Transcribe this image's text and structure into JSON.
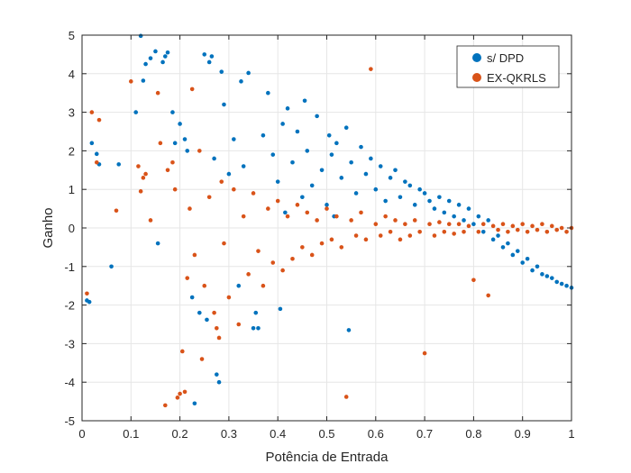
{
  "chart_data": {
    "type": "scatter",
    "title": "",
    "xlabel": "Potência de Entrada",
    "ylabel": "Ganho",
    "xlim": [
      0,
      1
    ],
    "ylim": [
      -5,
      5
    ],
    "xticks": [
      0,
      0.1,
      0.2,
      0.3,
      0.4,
      0.5,
      0.6,
      0.7,
      0.8,
      0.9,
      1
    ],
    "xtick_labels": [
      "0",
      "0.1",
      "0.2",
      "0.3",
      "0.4",
      "0.5",
      "0.6",
      "0.7",
      "0.8",
      "0.9",
      "1"
    ],
    "yticks": [
      -5,
      -4,
      -3,
      -2,
      -1,
      0,
      1,
      2,
      3,
      4,
      5
    ],
    "ytick_labels": [
      "-5",
      "-4",
      "-3",
      "-2",
      "-1",
      "0",
      "1",
      "2",
      "3",
      "4",
      "5"
    ],
    "grid": true,
    "legend_position": "top-right",
    "series": [
      {
        "name": "s/ DPD",
        "color": "#0072BD",
        "points": [
          [
            0.01,
            -1.88
          ],
          [
            0.015,
            -1.92
          ],
          [
            0.02,
            2.2
          ],
          [
            0.03,
            1.92
          ],
          [
            0.035,
            1.65
          ],
          [
            0.06,
            -1.0
          ],
          [
            0.075,
            1.65
          ],
          [
            0.11,
            3.0
          ],
          [
            0.12,
            4.98
          ],
          [
            0.125,
            3.82
          ],
          [
            0.13,
            4.25
          ],
          [
            0.14,
            4.4
          ],
          [
            0.15,
            4.58
          ],
          [
            0.155,
            -0.4
          ],
          [
            0.165,
            4.3
          ],
          [
            0.17,
            4.45
          ],
          [
            0.175,
            4.55
          ],
          [
            0.185,
            3.0
          ],
          [
            0.19,
            2.2
          ],
          [
            0.2,
            2.7
          ],
          [
            0.21,
            2.3
          ],
          [
            0.215,
            2.0
          ],
          [
            0.225,
            -1.8
          ],
          [
            0.23,
            -4.55
          ],
          [
            0.24,
            -2.2
          ],
          [
            0.25,
            4.5
          ],
          [
            0.255,
            -2.38
          ],
          [
            0.26,
            4.3
          ],
          [
            0.265,
            4.45
          ],
          [
            0.27,
            1.8
          ],
          [
            0.275,
            -3.8
          ],
          [
            0.28,
            -4.0
          ],
          [
            0.285,
            4.05
          ],
          [
            0.29,
            3.2
          ],
          [
            0.3,
            1.4
          ],
          [
            0.31,
            2.3
          ],
          [
            0.32,
            -1.5
          ],
          [
            0.325,
            3.8
          ],
          [
            0.33,
            1.6
          ],
          [
            0.34,
            4.02
          ],
          [
            0.35,
            -2.6
          ],
          [
            0.355,
            -2.2
          ],
          [
            0.36,
            -2.6
          ],
          [
            0.37,
            2.4
          ],
          [
            0.38,
            3.5
          ],
          [
            0.39,
            1.9
          ],
          [
            0.4,
            1.2
          ],
          [
            0.405,
            -2.1
          ],
          [
            0.41,
            2.7
          ],
          [
            0.415,
            0.4
          ],
          [
            0.42,
            3.1
          ],
          [
            0.43,
            1.7
          ],
          [
            0.44,
            2.5
          ],
          [
            0.45,
            0.8
          ],
          [
            0.455,
            3.3
          ],
          [
            0.46,
            2.0
          ],
          [
            0.47,
            1.1
          ],
          [
            0.48,
            2.9
          ],
          [
            0.49,
            1.5
          ],
          [
            0.5,
            0.6
          ],
          [
            0.505,
            2.4
          ],
          [
            0.51,
            1.9
          ],
          [
            0.515,
            0.3
          ],
          [
            0.52,
            2.2
          ],
          [
            0.53,
            1.3
          ],
          [
            0.54,
            2.6
          ],
          [
            0.545,
            -2.65
          ],
          [
            0.55,
            1.7
          ],
          [
            0.56,
            0.9
          ],
          [
            0.57,
            2.1
          ],
          [
            0.58,
            1.4
          ],
          [
            0.59,
            1.8
          ],
          [
            0.6,
            1.0
          ],
          [
            0.61,
            1.6
          ],
          [
            0.62,
            0.7
          ],
          [
            0.63,
            1.3
          ],
          [
            0.64,
            1.5
          ],
          [
            0.65,
            0.8
          ],
          [
            0.66,
            1.2
          ],
          [
            0.67,
            1.1
          ],
          [
            0.68,
            0.6
          ],
          [
            0.69,
            1.0
          ],
          [
            0.7,
            0.9
          ],
          [
            0.71,
            0.7
          ],
          [
            0.72,
            0.5
          ],
          [
            0.73,
            0.8
          ],
          [
            0.74,
            0.4
          ],
          [
            0.75,
            0.7
          ],
          [
            0.76,
            0.3
          ],
          [
            0.77,
            0.6
          ],
          [
            0.78,
            0.2
          ],
          [
            0.79,
            0.5
          ],
          [
            0.8,
            0.1
          ],
          [
            0.81,
            0.3
          ],
          [
            0.82,
            -0.1
          ],
          [
            0.83,
            0.2
          ],
          [
            0.84,
            -0.3
          ],
          [
            0.85,
            -0.2
          ],
          [
            0.86,
            -0.5
          ],
          [
            0.87,
            -0.4
          ],
          [
            0.88,
            -0.7
          ],
          [
            0.89,
            -0.6
          ],
          [
            0.9,
            -0.9
          ],
          [
            0.91,
            -0.8
          ],
          [
            0.92,
            -1.1
          ],
          [
            0.93,
            -1.0
          ],
          [
            0.94,
            -1.2
          ],
          [
            0.95,
            -1.25
          ],
          [
            0.96,
            -1.3
          ],
          [
            0.97,
            -1.4
          ],
          [
            0.98,
            -1.45
          ],
          [
            0.99,
            -1.5
          ],
          [
            1.0,
            -1.55
          ]
        ]
      },
      {
        "name": "EX-QKRLS",
        "color": "#D95319",
        "points": [
          [
            0.01,
            -1.7
          ],
          [
            0.02,
            3.0
          ],
          [
            0.03,
            1.7
          ],
          [
            0.035,
            2.8
          ],
          [
            0.07,
            0.45
          ],
          [
            0.1,
            3.8
          ],
          [
            0.115,
            1.6
          ],
          [
            0.12,
            0.95
          ],
          [
            0.125,
            1.3
          ],
          [
            0.13,
            1.4
          ],
          [
            0.14,
            0.2
          ],
          [
            0.155,
            3.5
          ],
          [
            0.16,
            2.2
          ],
          [
            0.17,
            -4.6
          ],
          [
            0.175,
            1.5
          ],
          [
            0.185,
            1.7
          ],
          [
            0.19,
            1.0
          ],
          [
            0.195,
            -4.4
          ],
          [
            0.2,
            -4.3
          ],
          [
            0.205,
            -3.2
          ],
          [
            0.21,
            -4.25
          ],
          [
            0.215,
            -1.3
          ],
          [
            0.22,
            0.5
          ],
          [
            0.225,
            3.6
          ],
          [
            0.23,
            -0.7
          ],
          [
            0.24,
            2.0
          ],
          [
            0.245,
            -3.4
          ],
          [
            0.25,
            -1.5
          ],
          [
            0.26,
            0.8
          ],
          [
            0.27,
            -2.2
          ],
          [
            0.275,
            -2.6
          ],
          [
            0.28,
            -2.85
          ],
          [
            0.285,
            1.2
          ],
          [
            0.29,
            -0.4
          ],
          [
            0.3,
            -1.8
          ],
          [
            0.31,
            1.0
          ],
          [
            0.32,
            -2.5
          ],
          [
            0.33,
            0.3
          ],
          [
            0.34,
            -1.2
          ],
          [
            0.35,
            0.9
          ],
          [
            0.36,
            -0.6
          ],
          [
            0.37,
            -1.5
          ],
          [
            0.38,
            0.5
          ],
          [
            0.39,
            -0.9
          ],
          [
            0.4,
            0.7
          ],
          [
            0.41,
            -1.1
          ],
          [
            0.42,
            0.3
          ],
          [
            0.43,
            -0.8
          ],
          [
            0.44,
            0.6
          ],
          [
            0.45,
            -0.5
          ],
          [
            0.46,
            0.4
          ],
          [
            0.47,
            -0.7
          ],
          [
            0.48,
            0.2
          ],
          [
            0.49,
            -0.4
          ],
          [
            0.5,
            0.5
          ],
          [
            0.51,
            -0.3
          ],
          [
            0.52,
            0.3
          ],
          [
            0.53,
            -0.5
          ],
          [
            0.54,
            -4.38
          ],
          [
            0.55,
            0.2
          ],
          [
            0.56,
            -0.2
          ],
          [
            0.57,
            0.4
          ],
          [
            0.58,
            -0.3
          ],
          [
            0.59,
            4.12
          ],
          [
            0.6,
            0.1
          ],
          [
            0.61,
            -0.2
          ],
          [
            0.62,
            0.3
          ],
          [
            0.63,
            -0.1
          ],
          [
            0.64,
            0.2
          ],
          [
            0.65,
            -0.3
          ],
          [
            0.66,
            0.1
          ],
          [
            0.67,
            -0.2
          ],
          [
            0.68,
            0.2
          ],
          [
            0.69,
            -0.1
          ],
          [
            0.7,
            -3.25
          ],
          [
            0.71,
            0.1
          ],
          [
            0.72,
            -0.2
          ],
          [
            0.73,
            0.15
          ],
          [
            0.74,
            -0.1
          ],
          [
            0.75,
            0.1
          ],
          [
            0.76,
            -0.15
          ],
          [
            0.77,
            0.1
          ],
          [
            0.78,
            -0.1
          ],
          [
            0.79,
            0.05
          ],
          [
            0.8,
            -1.35
          ],
          [
            0.81,
            -0.1
          ],
          [
            0.82,
            0.1
          ],
          [
            0.83,
            -1.75
          ],
          [
            0.84,
            0.05
          ],
          [
            0.85,
            -0.05
          ],
          [
            0.86,
            0.1
          ],
          [
            0.87,
            -0.1
          ],
          [
            0.88,
            0.05
          ],
          [
            0.89,
            -0.05
          ],
          [
            0.9,
            0.1
          ],
          [
            0.91,
            -0.1
          ],
          [
            0.92,
            0.05
          ],
          [
            0.93,
            -0.05
          ],
          [
            0.94,
            0.1
          ],
          [
            0.95,
            -0.1
          ],
          [
            0.96,
            0.05
          ],
          [
            0.97,
            -0.05
          ],
          [
            0.98,
            0.0
          ],
          [
            0.99,
            -0.1
          ],
          [
            1.0,
            0.0
          ]
        ]
      }
    ]
  }
}
